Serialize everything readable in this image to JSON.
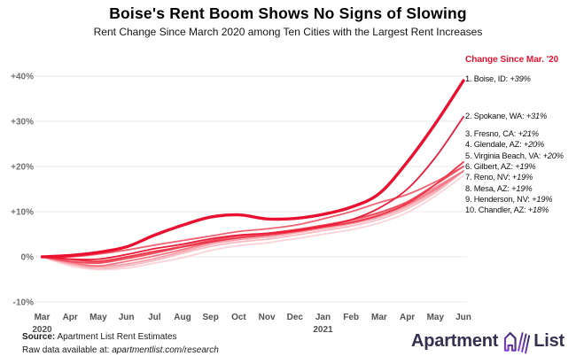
{
  "header": {
    "title": "Boise's Rent Boom Shows No Signs of Slowing",
    "subtitle": "Rent Change Since March 2020 among Ten Cities with the Largest Rent Increases"
  },
  "legend": {
    "header": "Change Since Mar. '20",
    "header_color": "#e9112f",
    "items": [
      {
        "label": "1. Boise, ID:",
        "value": "+39%"
      },
      {
        "label": "2. Spokane, WA:",
        "value": "+31%"
      },
      {
        "label": "3. Fresno, CA:",
        "value": "+21%"
      },
      {
        "label": "4. Glendale, AZ:",
        "value": "+20%"
      },
      {
        "label": "5. Virginia Beach, VA:",
        "value": "+20%"
      },
      {
        "label": "6. Gilbert, AZ:",
        "value": "+19%"
      },
      {
        "label": "7. Reno, NV:",
        "value": "+19%"
      },
      {
        "label": "8. Mesa, AZ:",
        "value": "+19%"
      },
      {
        "label": "9. Henderson, NV:",
        "value": "+19%"
      },
      {
        "label": "10. Chandler, AZ:",
        "value": "+18%"
      }
    ]
  },
  "chart_data": {
    "type": "line",
    "title": "Boise's Rent Boom Shows No Signs of Slowing",
    "xlabel": "",
    "ylabel": "",
    "ylim": [
      -10,
      40
    ],
    "grid": true,
    "legend_position": "right",
    "grid_color": "#e8e8e8",
    "y_ticks": [
      {
        "label": "+40%",
        "value": 40
      },
      {
        "label": "+30%",
        "value": 30
      },
      {
        "label": "+20%",
        "value": 20
      },
      {
        "label": "+10%",
        "value": 10
      },
      {
        "label": "0%",
        "value": 0
      },
      {
        "label": "-10%",
        "value": -10
      }
    ],
    "x_labels": [
      "Mar",
      "Apr",
      "May",
      "Jun",
      "Jul",
      "Aug",
      "Sep",
      "Oct",
      "Nov",
      "Dec",
      "Jan",
      "Feb",
      "Mar",
      "Apr",
      "May",
      "Jun"
    ],
    "x_year_labels": [
      {
        "index": 0,
        "label": "2020"
      },
      {
        "index": 10,
        "label": "2021"
      }
    ],
    "series": [
      {
        "rank": 1,
        "name": "Boise, ID",
        "final": "+39%",
        "color": "#e9112f",
        "width": 3.4,
        "values": [
          0,
          0.3,
          1,
          2.2,
          4.8,
          7,
          8.8,
          9.3,
          8.4,
          8.5,
          9.4,
          11,
          14,
          21,
          29.5,
          39
        ]
      },
      {
        "rank": 2,
        "name": "Spokane, WA",
        "final": "+31%",
        "color": "#ea1b37",
        "width": 1.8,
        "values": [
          0,
          -0.5,
          -0.5,
          0.5,
          1.8,
          2.8,
          4,
          4.8,
          5.2,
          5.8,
          6.8,
          8.2,
          10.8,
          15,
          22,
          31
        ]
      },
      {
        "rank": 3,
        "name": "Fresno, CA",
        "final": "+21%",
        "color": "#ed3649",
        "width": 1.8,
        "values": [
          0,
          -0.5,
          -1,
          0,
          1.2,
          2.2,
          3.3,
          4.2,
          4.8,
          5.6,
          6.6,
          7.6,
          9.2,
          11.8,
          16,
          21
        ]
      },
      {
        "rank": 4,
        "name": "Glendale, AZ",
        "final": "+20%",
        "color": "#ef4c5d",
        "width": 1.8,
        "values": [
          0,
          -1,
          -1.4,
          -0.4,
          0.8,
          2.2,
          3.6,
          4.6,
          5.2,
          6,
          7,
          8.2,
          9.8,
          12.2,
          16,
          20
        ]
      },
      {
        "rank": 5,
        "name": "Virginia Beach, VA",
        "final": "+20%",
        "color": "#f16170",
        "width": 1.8,
        "values": [
          0,
          0,
          0.6,
          1.5,
          2.6,
          3.6,
          4.6,
          5.6,
          6.2,
          7,
          8.4,
          10,
          12,
          13.8,
          16.6,
          20
        ]
      },
      {
        "rank": 6,
        "name": "Gilbert, AZ",
        "final": "+19%",
        "color": "#f37683",
        "width": 1.8,
        "values": [
          0,
          -1.2,
          -2,
          -1,
          0.2,
          1.6,
          3.2,
          4.2,
          4.8,
          5.6,
          6.6,
          7.6,
          9.2,
          11.6,
          15,
          19
        ]
      },
      {
        "rank": 7,
        "name": "Reno, NV",
        "final": "+19%",
        "color": "#f58c97",
        "width": 1.8,
        "values": [
          0,
          -0.6,
          -1.2,
          -0.2,
          1,
          2.4,
          3.6,
          4.6,
          5.1,
          6,
          7,
          8,
          9.6,
          12,
          15.4,
          19
        ]
      },
      {
        "rank": 8,
        "name": "Mesa, AZ",
        "final": "+19%",
        "color": "#f7a2ab",
        "width": 1.8,
        "values": [
          0,
          -1.5,
          -2.2,
          -1.6,
          -0.4,
          1.2,
          2.8,
          3.8,
          4.4,
          5.3,
          6.3,
          7.3,
          8.8,
          11.2,
          14.6,
          19
        ]
      },
      {
        "rank": 9,
        "name": "Henderson, NV",
        "final": "+19%",
        "color": "#f9bac1",
        "width": 1.8,
        "values": [
          0,
          -1.6,
          -2.6,
          -2,
          -0.8,
          0.8,
          2.3,
          3.3,
          3.9,
          4.8,
          5.8,
          6.8,
          8.3,
          10.7,
          14.2,
          19
        ]
      },
      {
        "rank": 10,
        "name": "Chandler, AZ",
        "final": "+18%",
        "color": "#fbd3d8",
        "width": 1.8,
        "values": [
          0,
          -2,
          -2.8,
          -2.5,
          -1.4,
          -0.2,
          1.4,
          2.5,
          3.1,
          4,
          5,
          6,
          7.5,
          9.8,
          13.5,
          18
        ]
      }
    ]
  },
  "footer": {
    "source_label": "Source:",
    "source_text": "Apartment List Rent Estimates",
    "raw_label": "Raw data available at:",
    "raw_url": "apartmentlist.com/research"
  },
  "logo": {
    "word1": "Apartment",
    "word2": "List"
  }
}
